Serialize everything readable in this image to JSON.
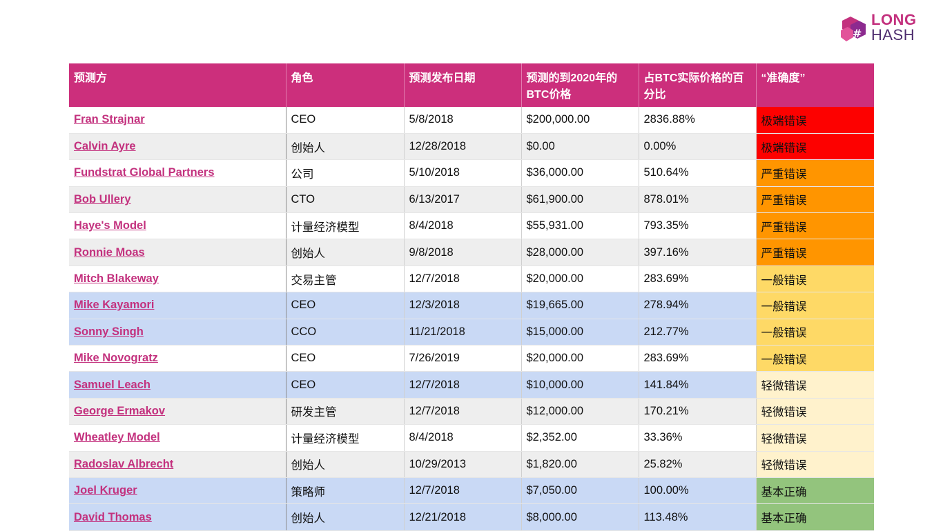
{
  "logo": {
    "line1": "LONG",
    "line2": "HASH"
  },
  "table": {
    "headers": [
      "预测方",
      "角色",
      "预测发布日期",
      "预测的到2020年的BTC价格",
      "占BTC实际价格的百分比",
      "“准确度”"
    ],
    "rows": [
      {
        "name": "Fran Strajnar",
        "role": "CEO",
        "date": "5/8/2018",
        "price": "$200,000.00",
        "pct": "2836.88%",
        "acc": "极端错误",
        "bg": "white",
        "acc_color": "#fd0100"
      },
      {
        "name": "Calvin Ayre",
        "role": "创始人",
        "date": "12/28/2018",
        "price": "$0.00",
        "pct": "0.00%",
        "acc": "极端错误",
        "bg": "grey",
        "acc_color": "#fd0100"
      },
      {
        "name": "Fundstrat Global Partners",
        "role": "公司",
        "date": "5/10/2018",
        "price": "$36,000.00",
        "pct": "510.64%",
        "acc": "严重错误",
        "bg": "white",
        "acc_color": "#ff9500"
      },
      {
        "name": "Bob Ullery",
        "role": "CTO",
        "date": "6/13/2017",
        "price": "$61,900.00",
        "pct": "878.01%",
        "acc": "严重错误",
        "bg": "grey",
        "acc_color": "#ff9500"
      },
      {
        "name": "Haye's Model",
        "role": "计量经济模型",
        "date": "8/4/2018",
        "price": "$55,931.00",
        "pct": "793.35%",
        "acc": "严重错误",
        "bg": "white",
        "acc_color": "#ff9500"
      },
      {
        "name": "Ronnie Moas",
        "role": "创始人",
        "date": "9/8/2018",
        "price": "$28,000.00",
        "pct": "397.16%",
        "acc": "严重错误",
        "bg": "grey",
        "acc_color": "#ff9500"
      },
      {
        "name": "Mitch Blakeway",
        "role": "交易主管",
        "date": "12/7/2018",
        "price": "$20,000.00",
        "pct": "283.69%",
        "acc": "一般错误",
        "bg": "white",
        "acc_color": "#fed966"
      },
      {
        "name": "Mike Kayamori",
        "role": "CEO",
        "date": "12/3/2018",
        "price": "$19,665.00",
        "pct": "278.94%",
        "acc": "一般错误",
        "bg": "blue",
        "acc_color": "#fed966"
      },
      {
        "name": "Sonny Singh",
        "role": "CCO",
        "date": "11/21/2018",
        "price": "$15,000.00",
        "pct": "212.77%",
        "acc": "一般错误",
        "bg": "blue",
        "acc_color": "#fed966"
      },
      {
        "name": "Mike Novogratz",
        "role": "CEO",
        "date": "7/26/2019",
        "price": "$20,000.00",
        "pct": "283.69%",
        "acc": "一般错误",
        "bg": "white",
        "acc_color": "#fed966"
      },
      {
        "name": "Samuel Leach",
        "role": "CEO",
        "date": "12/7/2018",
        "price": "$10,000.00",
        "pct": "141.84%",
        "acc": "轻微错误",
        "bg": "blue",
        "acc_color": "#fff2cc"
      },
      {
        "name": "George Ermakov",
        "role": "研发主管",
        "date": "12/7/2018",
        "price": "$12,000.00",
        "pct": "170.21%",
        "acc": "轻微错误",
        "bg": "grey",
        "acc_color": "#fff2cc"
      },
      {
        "name": "Wheatley Model",
        "role": "计量经济模型",
        "date": "8/4/2018",
        "price": "$2,352.00",
        "pct": "33.36%",
        "acc": "轻微错误",
        "bg": "white",
        "acc_color": "#fff2cc"
      },
      {
        "name": "Radoslav Albrecht",
        "role": "创始人",
        "date": "10/29/2013",
        "price": "$1,820.00",
        "pct": "25.82%",
        "acc": "轻微错误",
        "bg": "grey",
        "acc_color": "#fff2cc"
      },
      {
        "name": "Joel Kruger",
        "role": "策略师",
        "date": "12/7/2018",
        "price": "$7,050.00",
        "pct": "100.00%",
        "acc": "基本正确",
        "bg": "blue",
        "acc_color": "#93c47d"
      },
      {
        "name": "David Thomas",
        "role": "创始人",
        "date": "12/21/2018",
        "price": "$8,000.00",
        "pct": "113.48%",
        "acc": "基本正确",
        "bg": "blue",
        "acc_color": "#93c47d"
      }
    ]
  }
}
